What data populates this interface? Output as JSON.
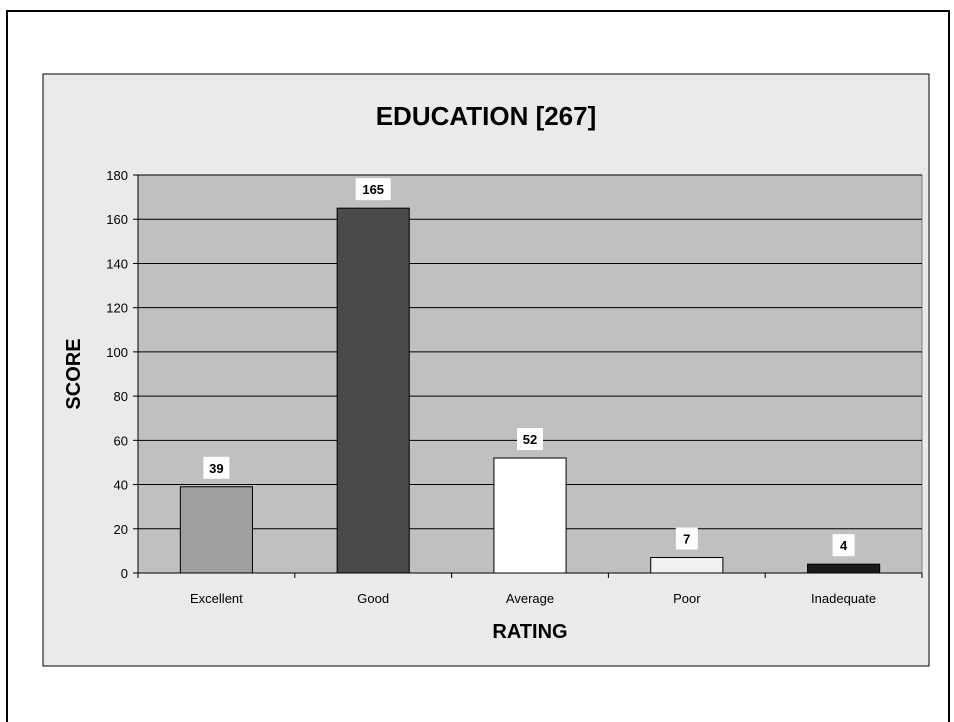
{
  "chart_data": {
    "type": "bar",
    "title": "EDUCATION [267]",
    "xlabel": "RATING",
    "ylabel": "SCORE",
    "categories": [
      "Excellent",
      "Good",
      "Average",
      "Poor",
      "Inadequate"
    ],
    "values": [
      39,
      165,
      52,
      7,
      4
    ],
    "data_labels": [
      "39",
      "165",
      "52",
      "7",
      "4"
    ],
    "bar_colors": [
      "#a0a0a0",
      "#4a4a4a",
      "#ffffff",
      "#f2f2f2",
      "#1a1a1a"
    ],
    "ylim": [
      0,
      180
    ],
    "yticks": [
      "0",
      "20",
      "40",
      "60",
      "80",
      "100",
      "120",
      "140",
      "160",
      "180"
    ],
    "grid": true,
    "legend": "none",
    "plot_background": "#c0c0c0",
    "chart_background": "#eaeaea"
  }
}
